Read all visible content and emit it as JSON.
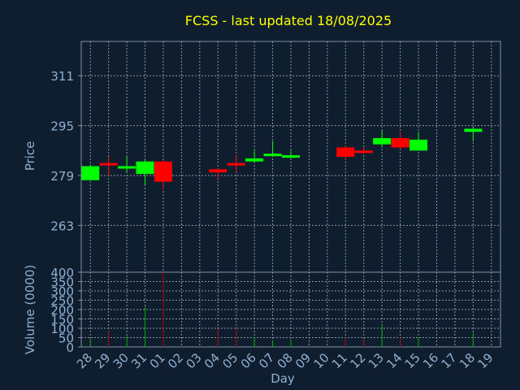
{
  "chart_data": {
    "type": "candlestick",
    "title": "FCSS - last updated 18/08/2025",
    "colors": {
      "background": "#0f1e2f",
      "title": "#ffff00",
      "axis_text": "#8fb0d0",
      "frame": "#7f8fa0",
      "grid": "#8a96a2",
      "up": "#00ff00",
      "down": "#ff0000",
      "vol_up": "#00aa00",
      "vol_down": "#aa0000"
    },
    "grid": true,
    "price_panel": {
      "ylabel": "Price",
      "ylim": [
        248,
        322
      ],
      "yticks": [
        263,
        279,
        295,
        311
      ],
      "ytick_labels": [
        "263",
        "279",
        "295",
        "311"
      ]
    },
    "volume_panel": {
      "ylabel": "Volume (0000)",
      "ylim": [
        0,
        400
      ],
      "yticks": [
        0,
        50,
        100,
        150,
        200,
        250,
        300,
        350,
        400
      ],
      "ytick_labels": [
        "0",
        "50",
        "100",
        "150",
        "200",
        "250",
        "300",
        "350",
        "400"
      ]
    },
    "xlabel": "Day",
    "x_tick_labels": [
      "28",
      "29",
      "30",
      "31",
      "01",
      "02",
      "03",
      "04",
      "05",
      "06",
      "07",
      "08",
      "09",
      "10",
      "11",
      "12",
      "13",
      "14",
      "15",
      "16",
      "17",
      "18",
      "19"
    ],
    "candles": [
      {
        "day": "28",
        "open": 277.5,
        "high": 282.5,
        "low": 277.5,
        "close": 282.0,
        "volume": 40
      },
      {
        "day": "29",
        "open": 283.0,
        "high": 285.0,
        "low": 279.0,
        "close": 282.5,
        "volume": 90
      },
      {
        "day": "30",
        "open": 281.5,
        "high": 285.0,
        "low": 280.0,
        "close": 282.0,
        "volume": 60
      },
      {
        "day": "31",
        "open": 279.5,
        "high": 284.0,
        "low": 276.0,
        "close": 283.5,
        "volume": 215
      },
      {
        "day": "01",
        "open": 283.5,
        "high": 284.0,
        "low": 274.5,
        "close": 277.0,
        "volume": 400
      },
      {
        "day": "04",
        "open": 281.0,
        "high": 281.5,
        "low": 278.0,
        "close": 280.0,
        "volume": 95
      },
      {
        "day": "05",
        "open": 283.0,
        "high": 285.5,
        "low": 280.0,
        "close": 282.5,
        "volume": 100
      },
      {
        "day": "06",
        "open": 283.5,
        "high": 287.0,
        "low": 283.0,
        "close": 284.5,
        "volume": 50
      },
      {
        "day": "07",
        "open": 285.5,
        "high": 290.0,
        "low": 285.0,
        "close": 286.0,
        "volume": 35
      },
      {
        "day": "08",
        "open": 285.0,
        "high": 287.0,
        "low": 284.5,
        "close": 285.5,
        "volume": 40
      },
      {
        "day": "11",
        "open": 288.0,
        "high": 288.5,
        "low": 284.0,
        "close": 285.0,
        "volume": 50
      },
      {
        "day": "12",
        "open": 287.0,
        "high": 288.0,
        "low": 286.0,
        "close": 286.5,
        "volume": 45
      },
      {
        "day": "13",
        "open": 289.0,
        "high": 293.5,
        "low": 288.0,
        "close": 291.0,
        "volume": 120
      },
      {
        "day": "14",
        "open": 291.0,
        "high": 293.0,
        "low": 287.5,
        "close": 288.0,
        "volume": 50
      },
      {
        "day": "15",
        "open": 287.0,
        "high": 293.0,
        "low": 287.0,
        "close": 290.5,
        "volume": 50
      },
      {
        "day": "18",
        "open": 293.0,
        "high": 294.5,
        "low": 290.0,
        "close": 294.0,
        "volume": 75
      }
    ]
  }
}
